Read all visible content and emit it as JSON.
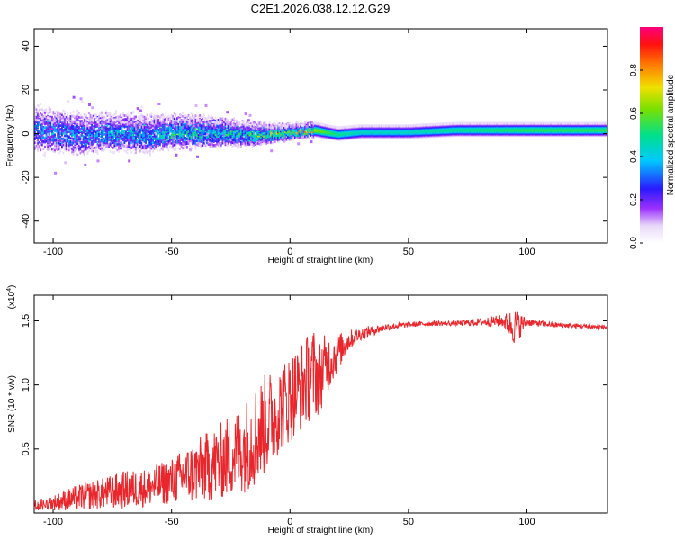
{
  "title": "C2E1.2026.038.12.12.G29",
  "chart_data": [
    {
      "type": "heatmap",
      "name": "spectrogram",
      "xlabel": "Height of straight line (km)",
      "ylabel": "Frequency (Hz)",
      "xlim": [
        -108,
        134
      ],
      "ylim": [
        -50,
        48
      ],
      "xticks": [
        -100,
        -50,
        0,
        50,
        100
      ],
      "yticks": [
        -40,
        -20,
        0,
        20,
        40
      ],
      "colorbar": {
        "label": "Normalized spectral amplitude",
        "range": [
          0,
          1
        ],
        "ticks": [
          0.0,
          0.2,
          0.4,
          0.6,
          0.8
        ],
        "ticklabels": [
          "0.0",
          "0.2",
          "0.4",
          "0.6",
          "0.8"
        ]
      },
      "ridge": {
        "x": [
          -105,
          -90,
          -75,
          -60,
          -50,
          -40,
          -30,
          -20,
          -10,
          0,
          10,
          20,
          30,
          50,
          70,
          100,
          134
        ],
        "freq": [
          2,
          0,
          1,
          0,
          1,
          1,
          1,
          0,
          0,
          1,
          2,
          0,
          1,
          1,
          2,
          2,
          2
        ],
        "spread": [
          10,
          9,
          8,
          8,
          7,
          7,
          6,
          5,
          4,
          3,
          3,
          3,
          3,
          3,
          3,
          3,
          3
        ],
        "amplitude": [
          0.3,
          0.3,
          0.35,
          0.35,
          0.4,
          0.4,
          0.4,
          0.45,
          0.5,
          0.6,
          0.65,
          0.5,
          0.45,
          0.45,
          0.5,
          0.55,
          0.55
        ]
      }
    },
    {
      "type": "line",
      "name": "snr",
      "xlabel": "Height of straight line (km)",
      "ylabel": "SNR (10 * v/v)",
      "multiplier": "(x10",
      "multiplier_exp": "4",
      "multiplier_close": ")",
      "xlim": [
        -108,
        134
      ],
      "ylim": [
        0,
        1.7
      ],
      "xticks": [
        -100,
        -50,
        0,
        50,
        100
      ],
      "yticks": [
        0.5,
        1.0,
        1.5
      ],
      "ytick_labels": [
        "0.5",
        "1.0",
        "1.5"
      ],
      "color": "#e8262b",
      "x": [
        -108,
        -100,
        -90,
        -80,
        -70,
        -60,
        -50,
        -40,
        -30,
        -20,
        -15,
        -10,
        -5,
        0,
        5,
        10,
        12,
        15,
        20,
        25,
        30,
        40,
        50,
        60,
        70,
        80,
        90,
        95,
        100,
        110,
        120,
        134
      ],
      "y": [
        0.05,
        0.08,
        0.12,
        0.15,
        0.18,
        0.2,
        0.25,
        0.32,
        0.4,
        0.5,
        0.6,
        0.7,
        0.8,
        0.9,
        1.0,
        1.1,
        1.05,
        1.15,
        1.25,
        1.35,
        1.4,
        1.45,
        1.47,
        1.48,
        1.48,
        1.49,
        1.5,
        1.45,
        1.49,
        1.47,
        1.46,
        1.45
      ],
      "noise": [
        0.05,
        0.06,
        0.1,
        0.12,
        0.15,
        0.15,
        0.18,
        0.25,
        0.3,
        0.35,
        0.4,
        0.4,
        0.35,
        0.35,
        0.35,
        0.35,
        0.3,
        0.25,
        0.15,
        0.08,
        0.05,
        0.03,
        0.02,
        0.02,
        0.02,
        0.03,
        0.05,
        0.15,
        0.03,
        0.02,
        0.02,
        0.02
      ]
    }
  ]
}
